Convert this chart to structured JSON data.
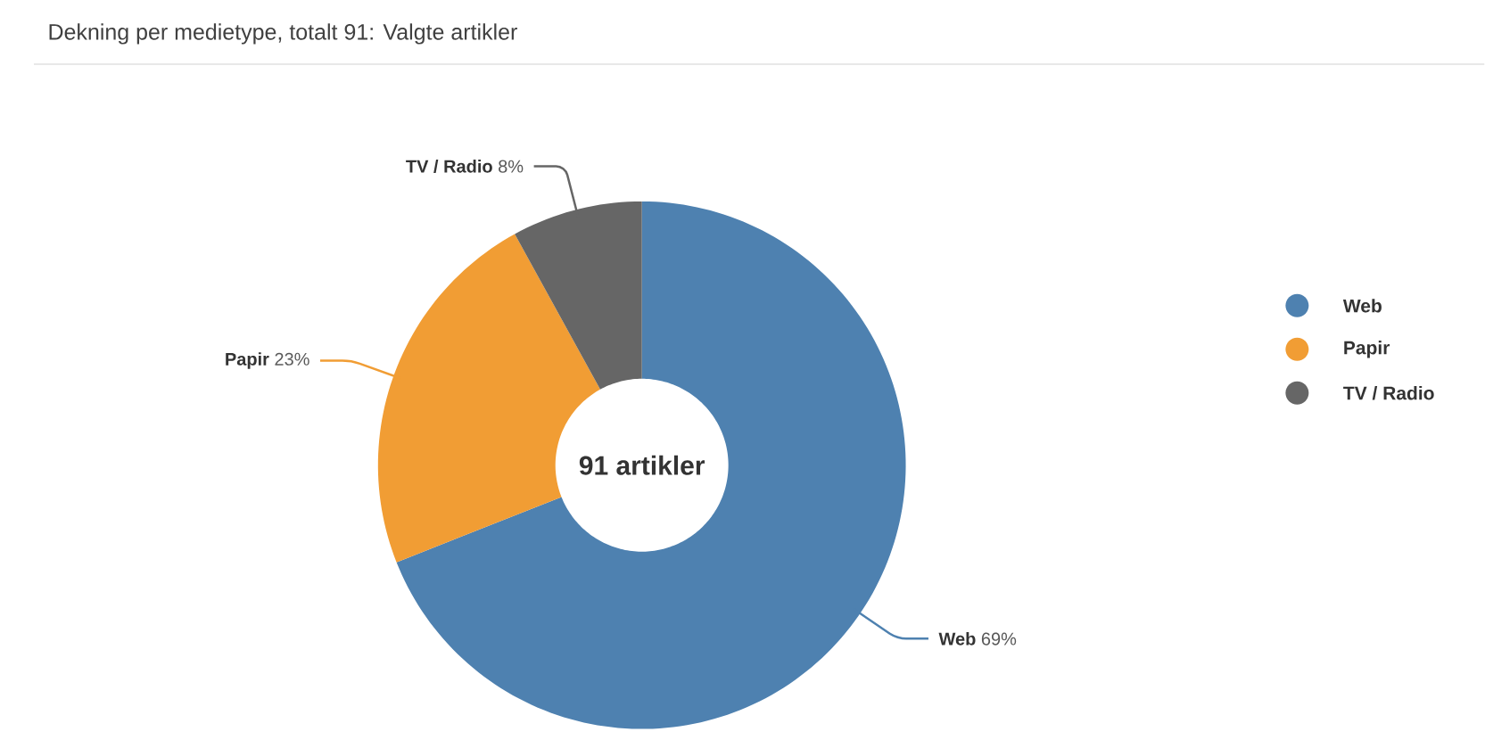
{
  "chart_data": {
    "type": "donut",
    "title": "Dekning per medietype, totalt 91: Valgte artikler",
    "categories": [
      "Web",
      "Papir",
      "TV / Radio"
    ],
    "values": [
      69,
      23,
      8
    ],
    "value_labels": [
      "69%",
      "23%",
      "8%"
    ],
    "colors": [
      "#4e81b0",
      "#f19d34",
      "#666666"
    ],
    "annotations": [
      "91 artikler"
    ],
    "legend": "right"
  }
}
